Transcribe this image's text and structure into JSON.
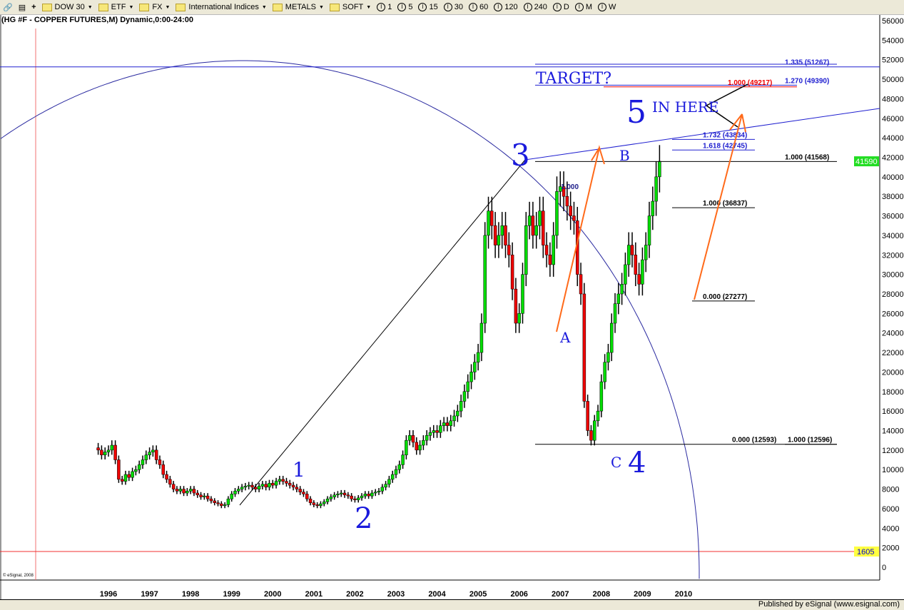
{
  "toolbar": {
    "items": [
      {
        "label": "DOW 30",
        "type": "folder"
      },
      {
        "label": "ETF",
        "type": "folder"
      },
      {
        "label": "FX",
        "type": "folder"
      },
      {
        "label": "International Indices",
        "type": "folder"
      },
      {
        "label": "METALS",
        "type": "folder"
      },
      {
        "label": "SOFT",
        "type": "folder"
      },
      {
        "label": "1",
        "type": "interval"
      },
      {
        "label": "5",
        "type": "interval"
      },
      {
        "label": "15",
        "type": "interval"
      },
      {
        "label": "30",
        "type": "interval"
      },
      {
        "label": "60",
        "type": "interval"
      },
      {
        "label": "120",
        "type": "interval"
      },
      {
        "label": "240",
        "type": "interval"
      },
      {
        "label": "D",
        "type": "interval"
      },
      {
        "label": "M",
        "type": "interval"
      },
      {
        "label": "W",
        "type": "interval"
      }
    ]
  },
  "title": "(HG #F - COPPER FUTURES,M) Dynamic,0:00-24:00",
  "copyright": "© eSignal, 2008",
  "status": "Published by eSignal (www.esignal.com)",
  "colors": {
    "up": "#00dd00",
    "down": "#ee0000",
    "annotation": "#1a1adc",
    "fib": "#2020d0",
    "arrow": "#ff6a1a",
    "target": "#ee0000"
  },
  "chart_data": {
    "type": "candlestick",
    "start": "1995-10",
    "interval": "monthly",
    "closes": [
      12000,
      11500,
      11800,
      12000,
      12500,
      11000,
      9000,
      8800,
      9500,
      9200,
      9800,
      10000,
      10500,
      11000,
      11500,
      11800,
      12000,
      11000,
      10500,
      9500,
      9000,
      8500,
      8000,
      7800,
      8000,
      7600,
      7800,
      8000,
      7600,
      7400,
      7200,
      7300,
      7000,
      6800,
      6600,
      6500,
      6300,
      6400,
      7000,
      7500,
      7800,
      8000,
      8200,
      8300,
      8400,
      8200,
      8000,
      8300,
      8500,
      8200,
      8600,
      8400,
      8800,
      9000,
      8800,
      8600,
      8400,
      8200,
      8000,
      7700,
      7500,
      7000,
      6600,
      6400,
      6300,
      6500,
      6700,
      7000,
      7200,
      7400,
      7500,
      7600,
      7400,
      7300,
      7000,
      6900,
      7100,
      7300,
      7500,
      7300,
      7600,
      7700,
      7800,
      8200,
      8500,
      9000,
      9500,
      10000,
      10500,
      11500,
      13000,
      13500,
      12800,
      12000,
      12500,
      13000,
      13500,
      13800,
      14000,
      13800,
      14500,
      14800,
      14500,
      15000,
      15500,
      16000,
      17000,
      18000,
      19000,
      20000,
      21000,
      22000,
      25000,
      34000,
      36500,
      35000,
      33000,
      34000,
      35000,
      33000,
      32000,
      28500,
      25000,
      26000,
      30000,
      35000,
      36000,
      34000,
      35000,
      36500,
      33000,
      32000,
      31000,
      34000,
      38500,
      39000,
      38000,
      37000,
      36000,
      35500,
      30000,
      28000,
      17000,
      14000,
      13000,
      15000,
      16000,
      19000,
      21000,
      22000,
      25000,
      27000,
      28000,
      29000,
      31000,
      33000,
      32000,
      30000,
      29000,
      31500,
      33000,
      36000,
      37500,
      40000,
      41590
    ],
    "last_price": "41590",
    "reference_line": "1605",
    "y_ticks": [
      "56000",
      "54000",
      "52000",
      "50000",
      "48000",
      "46000",
      "44000",
      "42000",
      "40000",
      "38000",
      "36000",
      "34000",
      "32000",
      "30000",
      "28000",
      "26000",
      "24000",
      "22000",
      "20000",
      "18000",
      "16000",
      "14000",
      "12000",
      "10000",
      "8000",
      "6000",
      "4000",
      "2000",
      "0"
    ],
    "ylim": [
      0,
      56000
    ],
    "x_ticks": [
      "1996",
      "1997",
      "1998",
      "1999",
      "2000",
      "2001",
      "2002",
      "2003",
      "2004",
      "2005",
      "2006",
      "2007",
      "2008",
      "2009",
      "2010"
    ],
    "fib_levels": [
      {
        "label": "1.335 (51267)",
        "price": 51267,
        "color": "#2020d0"
      },
      {
        "label": "1.270 (49390)",
        "price": 49390,
        "color": "#2020d0"
      },
      {
        "label": "1.000 (49217)",
        "price": 49217,
        "color": "#ee0000"
      },
      {
        "label": "1.732 (43834)",
        "price": 43834,
        "color": "#2020d0"
      },
      {
        "label": "1.618 (42745)",
        "price": 42745,
        "color": "#2020d0"
      },
      {
        "label": "1.000 (41568)",
        "price": 41568,
        "color": "#000000"
      },
      {
        "label": "1.000 (36837)",
        "price": 36837,
        "color": "#000000"
      },
      {
        "label": "0.000 (27277)",
        "price": 27277,
        "color": "#000000"
      },
      {
        "label": "0.000 (12593)",
        "price": 12593,
        "color": "#000000"
      },
      {
        "label": "1.000 (12596)",
        "price": 12596,
        "color": "#000000"
      }
    ],
    "annotations": {
      "w1": "1",
      "w2": "2",
      "w3": "3",
      "w4": "4",
      "wA": "A",
      "wB": "B",
      "wC": "C",
      "target": "TARGET?",
      "five": "5",
      "inhere": "IN HERE",
      "fib1": "1.000"
    }
  }
}
